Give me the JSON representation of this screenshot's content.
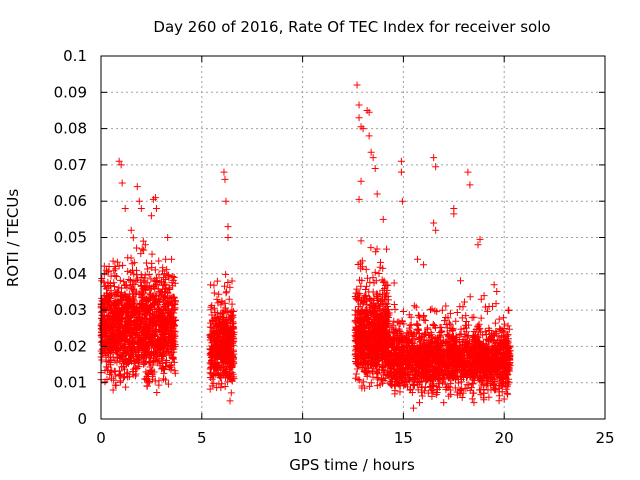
{
  "chart_data": {
    "type": "scatter",
    "title": "Day 260 of 2016, Rate Of TEC Index for receiver solo",
    "xlabel": "GPS time / hours",
    "ylabel": "ROTI / TECUs",
    "xlim": [
      0,
      25
    ],
    "ylim": [
      0,
      0.1
    ],
    "x_ticks": [
      0,
      5,
      10,
      15,
      20,
      25
    ],
    "y_ticks": [
      0,
      0.01,
      0.02,
      0.03,
      0.04,
      0.05,
      0.06,
      0.07,
      0.08,
      0.09,
      0.1
    ],
    "x_tick_labels": [
      "0",
      "5",
      "10",
      "15",
      "20",
      "25"
    ],
    "y_tick_labels": [
      "0",
      "0.01",
      "0.02",
      "0.03",
      "0.04",
      "0.05",
      "0.06",
      "0.07",
      "0.08",
      "0.09",
      "0.1"
    ],
    "grid": true,
    "marker": "+",
    "marker_color": "#ff0000",
    "series": [
      {
        "name": "ROTI",
        "points": [
          [
            0.3,
            0.0405
          ],
          [
            0.4,
            0.042
          ],
          [
            0.6,
            0.0435
          ],
          [
            0.9,
            0.071
          ],
          [
            1.0,
            0.07
          ],
          [
            1.05,
            0.065
          ],
          [
            1.2,
            0.058
          ],
          [
            1.5,
            0.052
          ],
          [
            1.8,
            0.064
          ],
          [
            1.9,
            0.06
          ],
          [
            2.0,
            0.058
          ],
          [
            2.1,
            0.049
          ],
          [
            2.2,
            0.048
          ],
          [
            2.5,
            0.056
          ],
          [
            2.6,
            0.0605
          ],
          [
            2.7,
            0.061
          ],
          [
            2.75,
            0.058
          ],
          [
            3.5,
            0.044
          ],
          [
            5.8,
            0.032
          ],
          [
            6.0,
            0.0325
          ],
          [
            6.1,
            0.068
          ],
          [
            6.15,
            0.066
          ],
          [
            6.2,
            0.06
          ],
          [
            6.3,
            0.053
          ],
          [
            6.3,
            0.05
          ],
          [
            6.5,
            0.038
          ],
          [
            6.4,
            0.005
          ],
          [
            12.7,
            0.092
          ],
          [
            12.8,
            0.0865
          ],
          [
            12.8,
            0.083
          ],
          [
            12.9,
            0.0805
          ],
          [
            13.0,
            0.08
          ],
          [
            13.2,
            0.085
          ],
          [
            13.3,
            0.0845
          ],
          [
            13.3,
            0.078
          ],
          [
            13.4,
            0.0735
          ],
          [
            13.5,
            0.072
          ],
          [
            13.6,
            0.069
          ],
          [
            13.7,
            0.062
          ],
          [
            12.8,
            0.0605
          ],
          [
            12.9,
            0.0655
          ],
          [
            14.0,
            0.055
          ],
          [
            14.9,
            0.071
          ],
          [
            14.9,
            0.068
          ],
          [
            14.95,
            0.06
          ],
          [
            15.7,
            0.044
          ],
          [
            16.0,
            0.0425
          ],
          [
            16.5,
            0.072
          ],
          [
            16.6,
            0.0695
          ],
          [
            16.5,
            0.054
          ],
          [
            16.6,
            0.052
          ],
          [
            17.5,
            0.058
          ],
          [
            17.5,
            0.0565
          ],
          [
            18.2,
            0.068
          ],
          [
            18.3,
            0.0645
          ],
          [
            18.8,
            0.0495
          ],
          [
            18.7,
            0.048
          ],
          [
            19.5,
            0.037
          ],
          [
            20.2,
            0.03
          ],
          [
            15.5,
            0.003
          ],
          [
            15.8,
            0.0045
          ],
          [
            17.0,
            0.0045
          ],
          [
            18.5,
            0.0045
          ],
          [
            20.0,
            0.0055
          ]
        ],
        "clusters": [
          {
            "x_start": 0.0,
            "x_end": 3.7,
            "y_min": 0.005,
            "y_base": 0.025,
            "y_spread": 0.013,
            "count": 1500
          },
          {
            "x_start": 5.4,
            "x_end": 6.6,
            "y_min": 0.005,
            "y_base": 0.02,
            "y_spread": 0.012,
            "count": 500
          },
          {
            "x_start": 12.6,
            "x_end": 14.3,
            "y_min": 0.005,
            "y_base": 0.022,
            "y_spread": 0.016,
            "count": 800
          },
          {
            "x_start": 14.3,
            "x_end": 20.3,
            "y_min": 0.004,
            "y_base": 0.016,
            "y_spread": 0.012,
            "count": 1900
          }
        ]
      }
    ]
  }
}
